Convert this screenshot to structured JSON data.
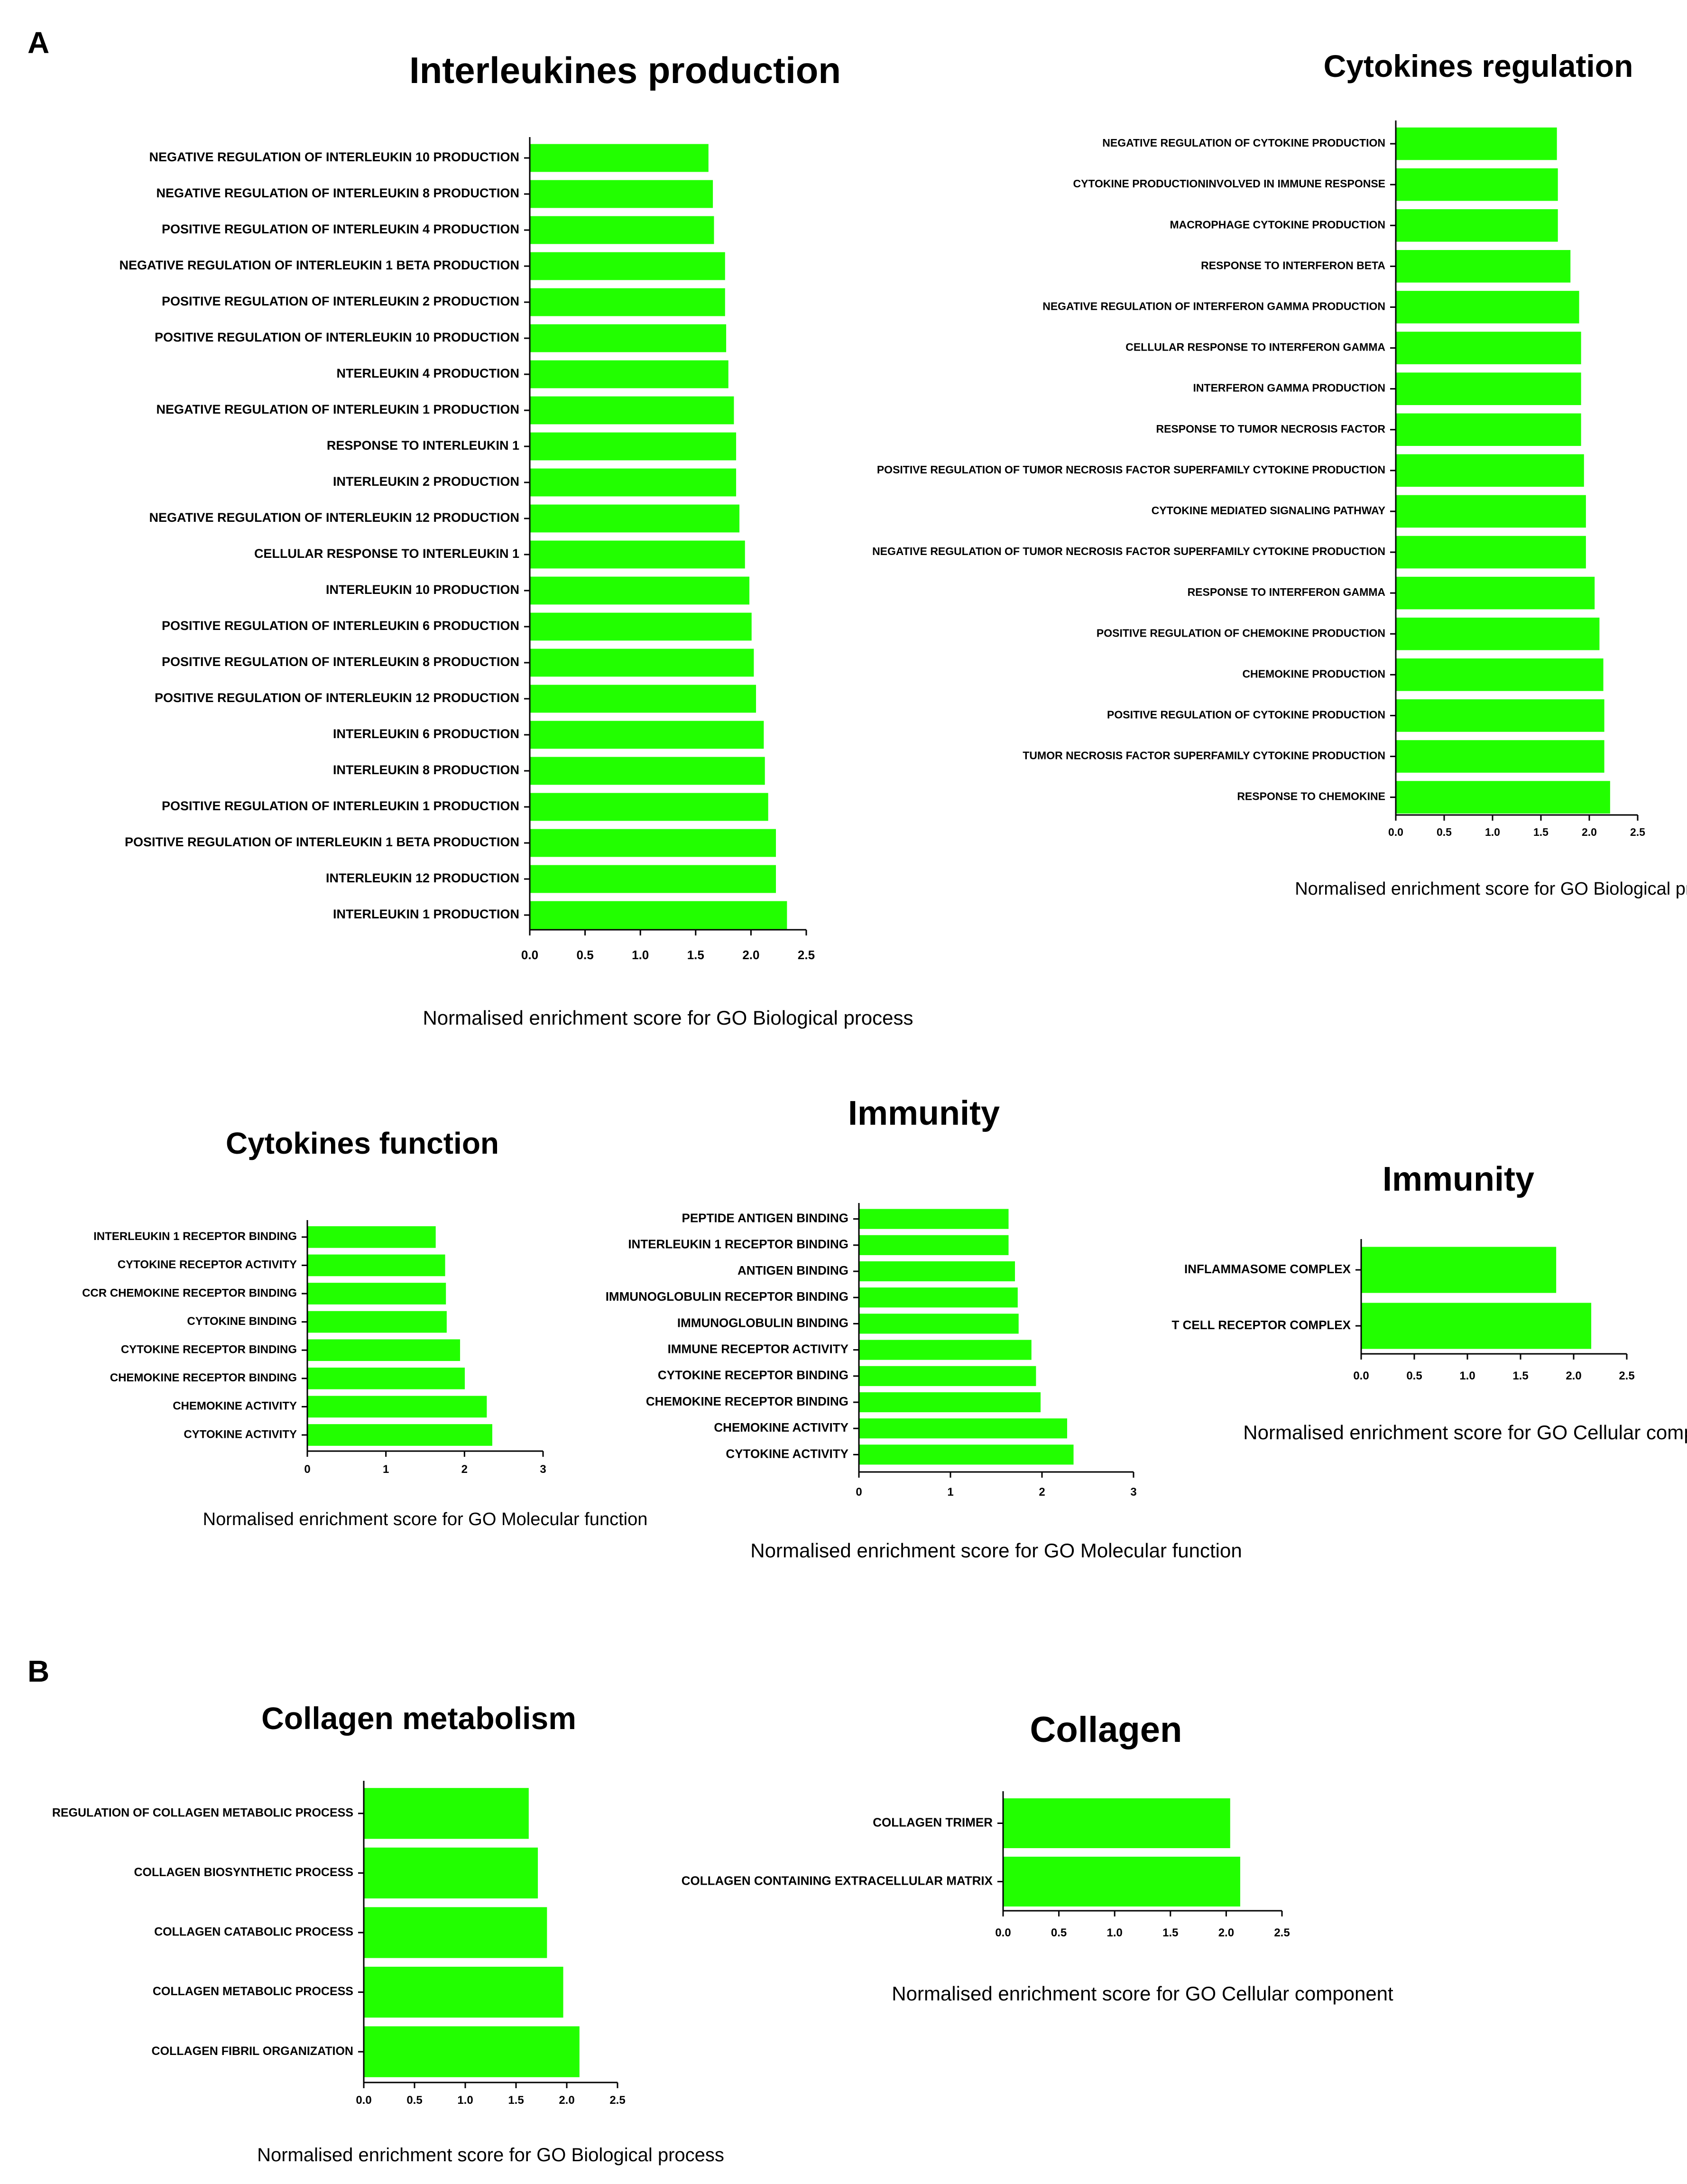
{
  "panel_labels": [
    "A",
    "B"
  ],
  "bar_color": "#22ff00",
  "chart_data": [
    {
      "type": "bar",
      "orientation": "horizontal",
      "title": "Interleukines production",
      "xlabel": "Normalised enrichment score for GO Biological process",
      "xlim": [
        0,
        2.5
      ],
      "xticks": [
        0,
        0.5,
        1,
        1.5,
        2,
        2.5
      ],
      "xtick_labels": [
        "0.0",
        "0.5",
        "1.0",
        "1.5",
        "2.0",
        "2.5"
      ],
      "categories": [
        "NEGATIVE REGULATION OF INTERLEUKIN 10 PRODUCTION",
        "NEGATIVE REGULATION OF INTERLEUKIN 8 PRODUCTION",
        "POSITIVE REGULATION OF INTERLEUKIN 4 PRODUCTION",
        "NEGATIVE REGULATION OF INTERLEUKIN 1 BETA PRODUCTION",
        "POSITIVE REGULATION OF INTERLEUKIN 2 PRODUCTION",
        "POSITIVE REGULATION OF INTERLEUKIN 10 PRODUCTION",
        "NTERLEUKIN 4 PRODUCTION",
        "NEGATIVE REGULATION OF INTERLEUKIN 1 PRODUCTION",
        "RESPONSE TO INTERLEUKIN 1",
        "INTERLEUKIN 2 PRODUCTION",
        "NEGATIVE REGULATION OF INTERLEUKIN 12 PRODUCTION",
        "CELLULAR RESPONSE TO INTERLEUKIN 1",
        "INTERLEUKIN 10 PRODUCTION",
        "POSITIVE REGULATION OF INTERLEUKIN 6 PRODUCTION",
        "POSITIVE REGULATION OF INTERLEUKIN 8 PRODUCTION",
        "POSITIVE REGULATION OF INTERLEUKIN 12 PRODUCTION",
        "INTERLEUKIN 6 PRODUCTION",
        "INTERLEUKIN 8 PRODUCTION",
        "POSITIVE REGULATION OF INTERLEUKIN 1 PRODUCTION",
        "POSITIVE REGULATION OF INTERLEUKIN 1 BETA PRODUCTION",
        "INTERLEUKIN 12 PRODUCTION",
        "INTERLEUKIN 1 PRODUCTION"
      ],
      "values": [
        1.62,
        1.66,
        1.67,
        1.77,
        1.77,
        1.78,
        1.8,
        1.85,
        1.87,
        1.87,
        1.9,
        1.95,
        1.99,
        2.01,
        2.03,
        2.05,
        2.12,
        2.13,
        2.16,
        2.23,
        2.23,
        2.33
      ]
    },
    {
      "type": "bar",
      "orientation": "horizontal",
      "title": "Cytokines regulation",
      "xlabel": "Normalised enrichment score for GO Biological process",
      "xlim": [
        0,
        2.5
      ],
      "xticks": [
        0,
        0.5,
        1,
        1.5,
        2,
        2.5
      ],
      "xtick_labels": [
        "0.0",
        "0.5",
        "1.0",
        "1.5",
        "2.0",
        "2.5"
      ],
      "categories": [
        "NEGATIVE REGULATION OF CYTOKINE PRODUCTION",
        "CYTOKINE PRODUCTIONINVOLVED IN IMMUNE RESPONSE",
        "MACROPHAGE CYTOKINE PRODUCTION",
        "RESPONSE TO INTERFERON BETA",
        "NEGATIVE REGULATION OF INTERFERON GAMMA PRODUCTION",
        "CELLULAR RESPONSE TO INTERFERON GAMMA",
        "INTERFERON GAMMA PRODUCTION",
        "RESPONSE TO TUMOR NECROSIS FACTOR",
        "POSITIVE REGULATION OF TUMOR NECROSIS FACTOR SUPERFAMILY CYTOKINE PRODUCTION",
        "CYTOKINE MEDIATED SIGNALING PATHWAY",
        "NEGATIVE REGULATION OF TUMOR NECROSIS FACTOR SUPERFAMILY CYTOKINE PRODUCTION",
        "RESPONSE TO INTERFERON GAMMA",
        "POSITIVE REGULATION OF CHEMOKINE PRODUCTION",
        "CHEMOKINE PRODUCTION",
        "POSITIVE REGULATION OF CYTOKINE PRODUCTION",
        "TUMOR NECROSIS FACTOR SUPERFAMILY CYTOKINE PRODUCTION",
        "RESPONSE TO CHEMOKINE"
      ],
      "values": [
        1.67,
        1.68,
        1.68,
        1.81,
        1.9,
        1.92,
        1.92,
        1.92,
        1.95,
        1.97,
        1.97,
        2.06,
        2.11,
        2.15,
        2.16,
        2.16,
        2.22
      ]
    },
    {
      "type": "bar",
      "orientation": "horizontal",
      "title": "Cytokines function",
      "xlabel": "Normalised enrichment score for GO Molecular function",
      "xlim": [
        0,
        3
      ],
      "xticks": [
        0,
        1,
        2,
        3
      ],
      "xtick_labels": [
        "0",
        "1",
        "2",
        "3"
      ],
      "categories": [
        "INTERLEUKIN 1 RECEPTOR BINDING",
        "CYTOKINE RECEPTOR ACTIVITY",
        "CCR CHEMOKINE RECEPTOR BINDING",
        "CYTOKINE BINDING",
        "CYTOKINE RECEPTOR BINDING",
        "CHEMOKINE RECEPTOR BINDING",
        "CHEMOKINE ACTIVITY",
        "CYTOKINE ACTIVITY"
      ],
      "values": [
        1.64,
        1.76,
        1.77,
        1.78,
        1.95,
        2.01,
        2.29,
        2.36
      ]
    },
    {
      "type": "bar",
      "orientation": "horizontal",
      "title": "Immunity",
      "xlabel": "Normalised enrichment score for GO Molecular function",
      "xlim": [
        0,
        3
      ],
      "xticks": [
        0,
        1,
        2,
        3
      ],
      "xtick_labels": [
        "0",
        "1",
        "2",
        "3"
      ],
      "categories": [
        "PEPTIDE ANTIGEN BINDING",
        "INTERLEUKIN 1 RECEPTOR BINDING",
        "ANTIGEN BINDING",
        "IMMUNOGLOBULIN RECEPTOR BINDING",
        "IMMUNOGLOBULIN BINDING",
        "IMMUNE RECEPTOR ACTIVITY",
        "CYTOKINE RECEPTOR BINDING",
        "CHEMOKINE RECEPTOR BINDING",
        "CHEMOKINE ACTIVITY",
        "CYTOKINE ACTIVITY"
      ],
      "values": [
        1.64,
        1.64,
        1.71,
        1.74,
        1.75,
        1.89,
        1.94,
        1.99,
        2.28,
        2.35
      ]
    },
    {
      "type": "bar",
      "orientation": "horizontal",
      "title": "Immunity",
      "xlabel": "Normalised enrichment score for GO Cellular component",
      "xlim": [
        0,
        2.5
      ],
      "xticks": [
        0,
        0.5,
        1,
        1.5,
        2,
        2.5
      ],
      "xtick_labels": [
        "0.0",
        "0.5",
        "1.0",
        "1.5",
        "2.0",
        "2.5"
      ],
      "categories": [
        "INFLAMMASOME COMPLEX",
        "T CELL RECEPTOR COMPLEX"
      ],
      "values": [
        1.84,
        2.17
      ]
    },
    {
      "type": "bar",
      "orientation": "horizontal",
      "title": "Collagen metabolism",
      "xlabel": "Normalised enrichment score for GO Biological process",
      "xlim": [
        0,
        2.5
      ],
      "xticks": [
        0,
        0.5,
        1,
        1.5,
        2,
        2.5
      ],
      "xtick_labels": [
        "0.0",
        "0.5",
        "1.0",
        "1.5",
        "2.0",
        "2.5"
      ],
      "categories": [
        "REGULATION OF COLLAGEN METABOLIC PROCESS",
        "COLLAGEN BIOSYNTHETIC PROCESS",
        "COLLAGEN CATABOLIC PROCESS",
        "COLLAGEN METABOLIC PROCESS",
        "COLLAGEN FIBRIL ORGANIZATION"
      ],
      "values": [
        1.63,
        1.72,
        1.81,
        1.97,
        2.13
      ]
    },
    {
      "type": "bar",
      "orientation": "horizontal",
      "title": "Collagen",
      "xlabel": "Normalised enrichment score for GO Cellular component",
      "xlim": [
        0,
        2.5
      ],
      "xticks": [
        0,
        0.5,
        1,
        1.5,
        2,
        2.5
      ],
      "xtick_labels": [
        "0.0",
        "0.5",
        "1.0",
        "1.5",
        "2.0",
        "2.5"
      ],
      "categories": [
        "COLLAGEN TRIMER",
        "COLLAGEN CONTAINING EXTRACELLULAR MATRIX"
      ],
      "values": [
        2.04,
        2.13
      ]
    }
  ]
}
